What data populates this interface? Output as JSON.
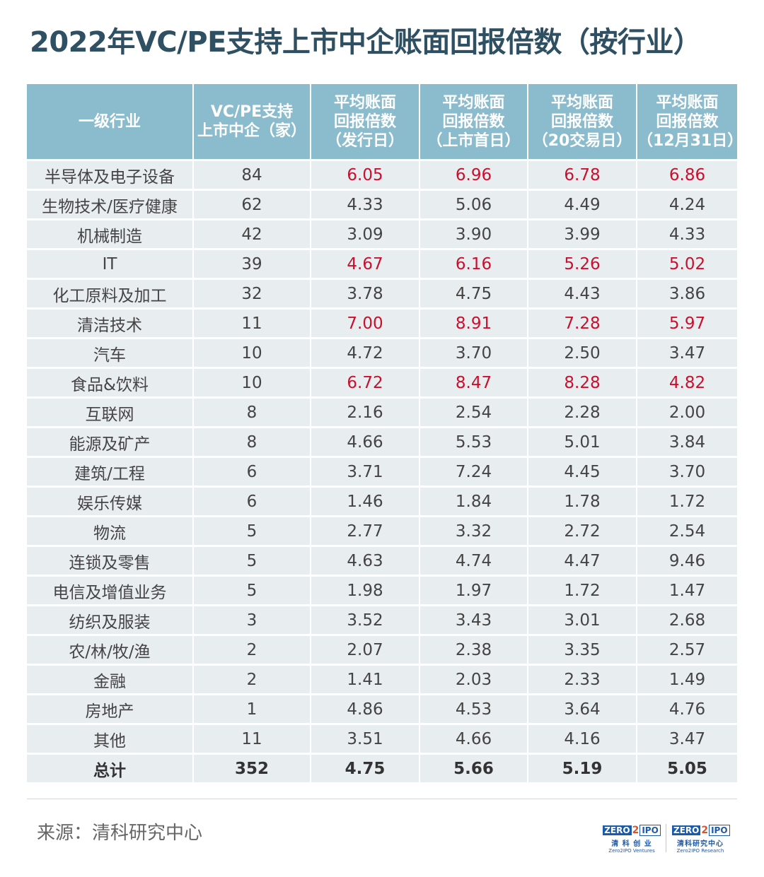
{
  "title": "2022年VC/PE支持上市中企账面回报倍数（按行业）",
  "colors": {
    "header_bg": "#8bbccd",
    "row_bg": "#e8edf0",
    "highlight": "#c8102e",
    "title": "#2f4f62"
  },
  "chart_data": {
    "type": "table",
    "title": "2022年VC/PE支持上市中企账面回报倍数（按行业）",
    "columns": [
      {
        "lines": [
          "一级行业"
        ]
      },
      {
        "lines": [
          "VC/PE支持",
          "上市中企（家）"
        ]
      },
      {
        "lines": [
          "平均账面",
          "回报倍数",
          "（发行日）"
        ]
      },
      {
        "lines": [
          "平均账面",
          "回报倍数",
          "（上市首日）"
        ]
      },
      {
        "lines": [
          "平均账面",
          "回报倍数",
          "（20交易日）"
        ]
      },
      {
        "lines": [
          "平均账面",
          "回报倍数",
          "（12月31日）"
        ]
      }
    ],
    "rows": [
      {
        "industry": "半导体及电子设备",
        "count": "84",
        "values": [
          "6.05",
          "6.96",
          "6.78",
          "6.86"
        ],
        "highlight": true
      },
      {
        "industry": "生物技术/医疗健康",
        "count": "62",
        "values": [
          "4.33",
          "5.06",
          "4.49",
          "4.24"
        ],
        "highlight": false
      },
      {
        "industry": "机械制造",
        "count": "42",
        "values": [
          "3.09",
          "3.90",
          "3.99",
          "4.33"
        ],
        "highlight": false
      },
      {
        "industry": "IT",
        "count": "39",
        "values": [
          "4.67",
          "6.16",
          "5.26",
          "5.02"
        ],
        "highlight": true
      },
      {
        "industry": "化工原料及加工",
        "count": "32",
        "values": [
          "3.78",
          "4.75",
          "4.43",
          "3.86"
        ],
        "highlight": false
      },
      {
        "industry": "清洁技术",
        "count": "11",
        "values": [
          "7.00",
          "8.91",
          "7.28",
          "5.97"
        ],
        "highlight": true
      },
      {
        "industry": "汽车",
        "count": "10",
        "values": [
          "4.72",
          "3.70",
          "2.50",
          "3.47"
        ],
        "highlight": false
      },
      {
        "industry": "食品&饮料",
        "count": "10",
        "values": [
          "6.72",
          "8.47",
          "8.28",
          "4.82"
        ],
        "highlight": true
      },
      {
        "industry": "互联网",
        "count": "8",
        "values": [
          "2.16",
          "2.54",
          "2.28",
          "2.00"
        ],
        "highlight": false
      },
      {
        "industry": "能源及矿产",
        "count": "8",
        "values": [
          "4.66",
          "5.53",
          "5.01",
          "3.84"
        ],
        "highlight": false
      },
      {
        "industry": "建筑/工程",
        "count": "6",
        "values": [
          "3.71",
          "7.24",
          "4.45",
          "3.70"
        ],
        "highlight": false
      },
      {
        "industry": "娱乐传媒",
        "count": "6",
        "values": [
          "1.46",
          "1.84",
          "1.78",
          "1.72"
        ],
        "highlight": false
      },
      {
        "industry": "物流",
        "count": "5",
        "values": [
          "2.77",
          "3.32",
          "2.72",
          "2.54"
        ],
        "highlight": false
      },
      {
        "industry": "连锁及零售",
        "count": "5",
        "values": [
          "4.63",
          "4.74",
          "4.47",
          "9.46"
        ],
        "highlight": false
      },
      {
        "industry": "电信及增值业务",
        "count": "5",
        "values": [
          "1.98",
          "1.97",
          "1.72",
          "1.47"
        ],
        "highlight": false
      },
      {
        "industry": "纺织及服装",
        "count": "3",
        "values": [
          "3.52",
          "3.43",
          "3.01",
          "2.68"
        ],
        "highlight": false
      },
      {
        "industry": "农/林/牧/渔",
        "count": "2",
        "values": [
          "2.07",
          "2.38",
          "3.35",
          "2.57"
        ],
        "highlight": false
      },
      {
        "industry": "金融",
        "count": "2",
        "values": [
          "1.41",
          "2.03",
          "2.33",
          "1.49"
        ],
        "highlight": false
      },
      {
        "industry": "房地产",
        "count": "1",
        "values": [
          "4.86",
          "4.53",
          "3.64",
          "4.76"
        ],
        "highlight": false
      },
      {
        "industry": "其他",
        "count": "11",
        "values": [
          "3.51",
          "4.66",
          "4.16",
          "3.47"
        ],
        "highlight": false
      }
    ],
    "total": {
      "industry": "总计",
      "count": "352",
      "values": [
        "4.75",
        "5.66",
        "5.19",
        "5.05"
      ]
    }
  },
  "footer": {
    "source": "来源：清科研究中心",
    "logos": [
      {
        "zero": "ZERO",
        "two": "2",
        "ipo": "IPO",
        "cn": "清 科 创 业",
        "en": "Zero2IPO Ventures"
      },
      {
        "zero": "ZERO",
        "two": "2",
        "ipo": "IPO",
        "cn": "清科研究中心",
        "en": "Zero2IPO Research"
      }
    ]
  }
}
